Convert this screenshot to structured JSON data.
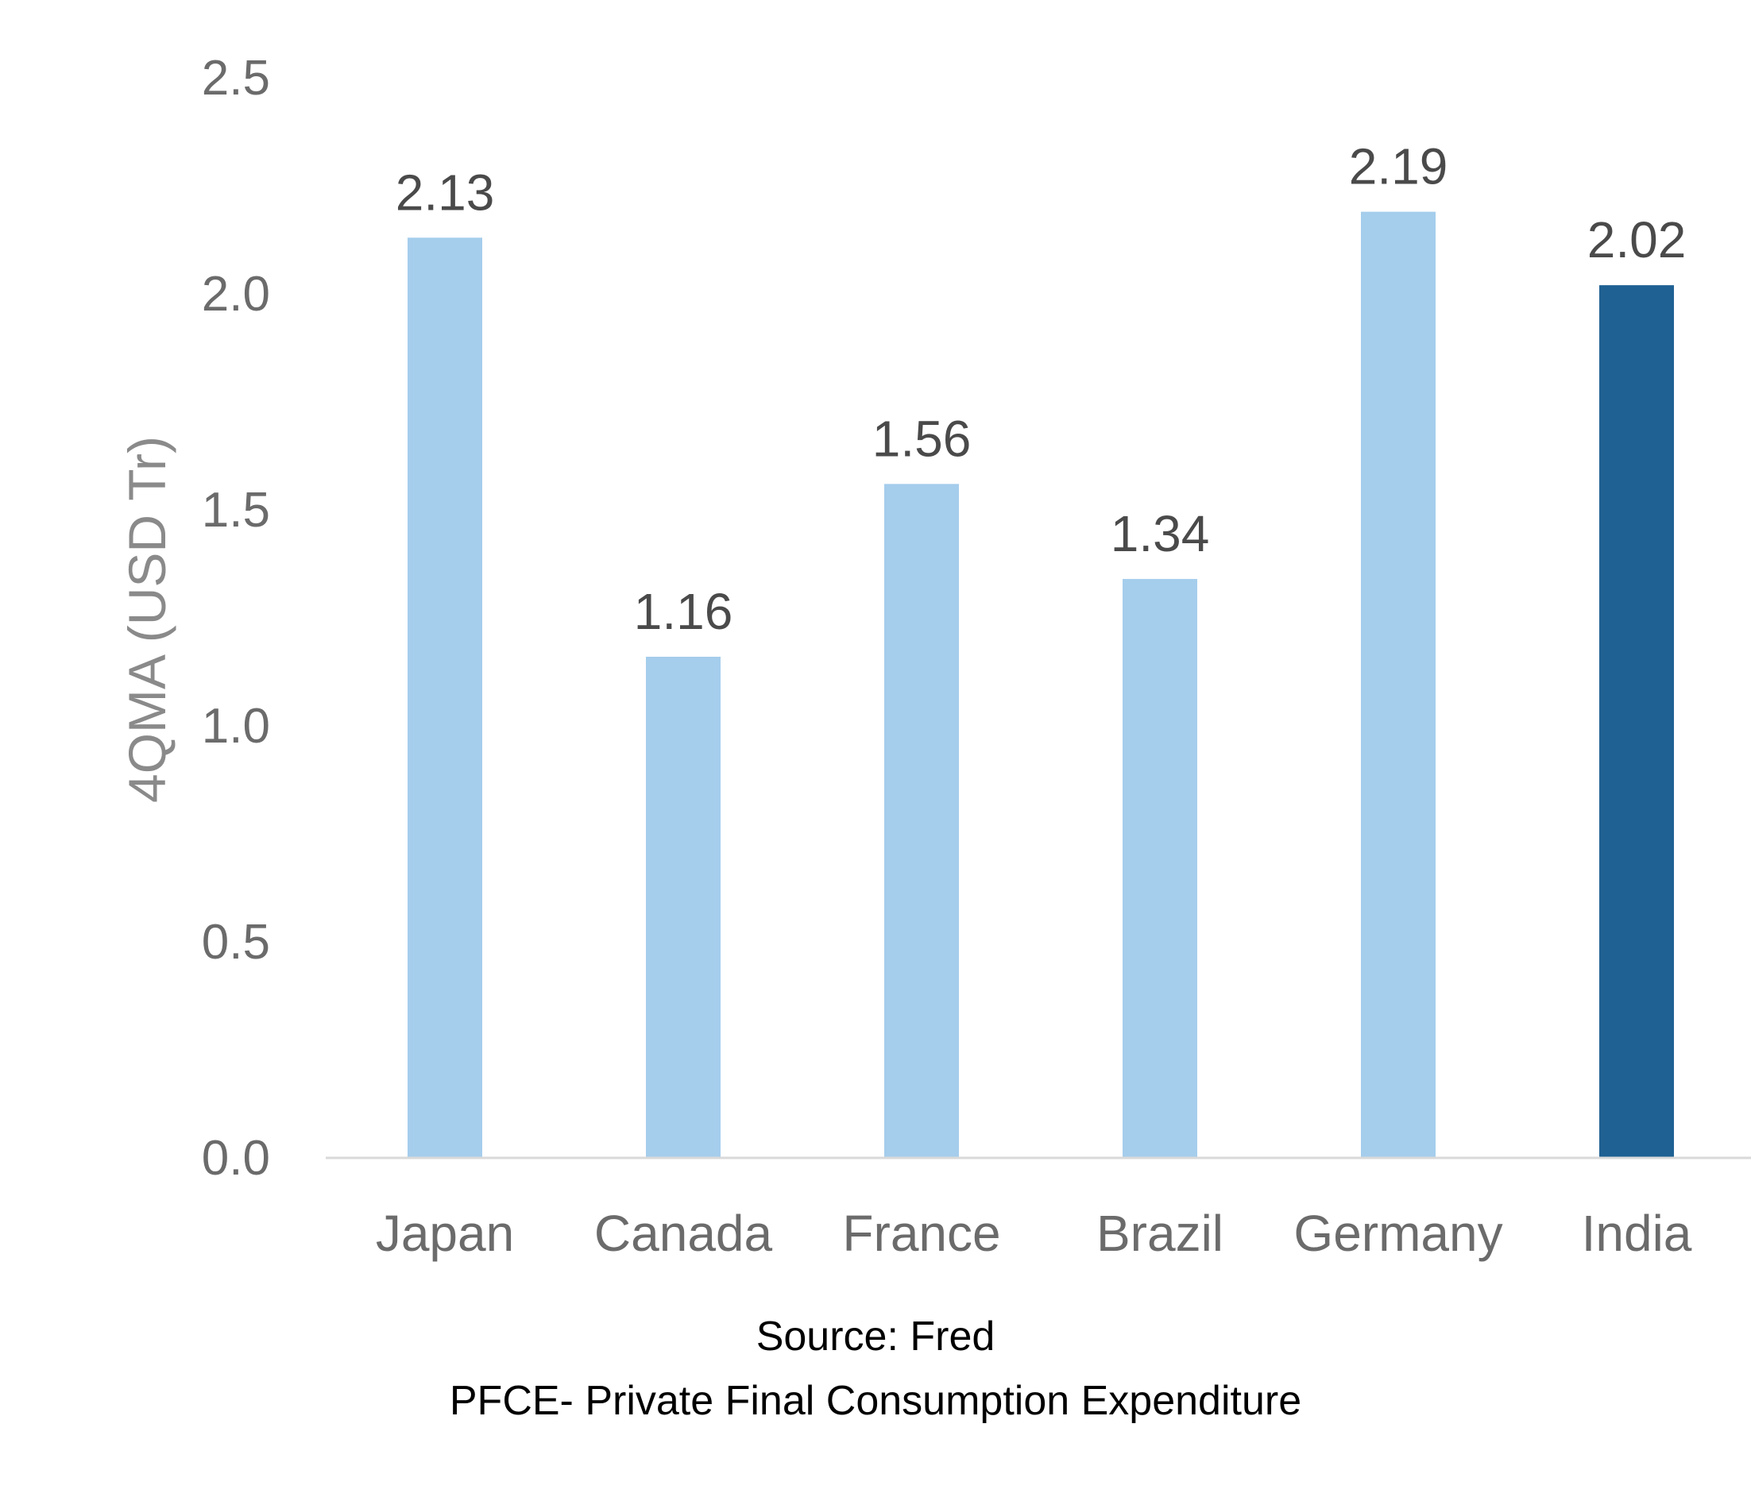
{
  "chart_data": {
    "type": "bar",
    "categories": [
      "Japan",
      "Canada",
      "France",
      "Brazil",
      "Germany",
      "India"
    ],
    "values": [
      2.13,
      1.16,
      1.56,
      1.34,
      2.19,
      2.02
    ],
    "value_labels": [
      "2.13",
      "1.16",
      "1.56",
      "1.34",
      "2.19",
      "2.02"
    ],
    "title": "",
    "xlabel": "",
    "ylabel": "4QMA (USD Tr)",
    "ylim": [
      0,
      2.5
    ],
    "yticks": [
      0.0,
      0.5,
      1.0,
      1.5,
      2.0,
      2.5
    ],
    "ytick_labels": [
      "0.0",
      "0.5",
      "1.0",
      "1.5",
      "2.0",
      "2.5"
    ],
    "grid": false,
    "legend": "none",
    "colors": {
      "default_bar": "#a5cdec",
      "highlight_bar": "#1f6193",
      "highlight_category": "India",
      "axis_line": "#d9d9d9"
    }
  },
  "footer": {
    "source": "Source:  Fred",
    "note": "PFCE- Private Final Consumption Expenditure"
  }
}
